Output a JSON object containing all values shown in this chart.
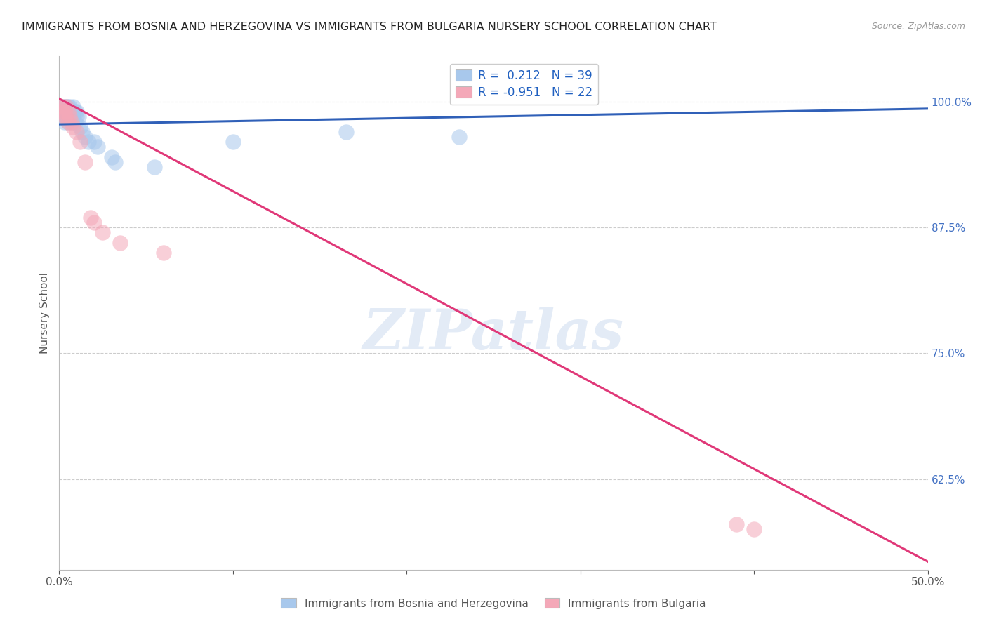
{
  "title": "IMMIGRANTS FROM BOSNIA AND HERZEGOVINA VS IMMIGRANTS FROM BULGARIA NURSERY SCHOOL CORRELATION CHART",
  "source": "Source: ZipAtlas.com",
  "ylabel": "Nursery School",
  "ytick_labels": [
    "100.0%",
    "87.5%",
    "75.0%",
    "62.5%"
  ],
  "ytick_values": [
    1.0,
    0.875,
    0.75,
    0.625
  ],
  "xlim": [
    0.0,
    0.5
  ],
  "ylim": [
    0.535,
    1.045
  ],
  "legend_bosnia_r": "R =  0.212",
  "legend_bosnia_n": "N = 39",
  "legend_bulgaria_r": "R = -0.951",
  "legend_bulgaria_n": "N = 22",
  "watermark": "ZIPatlas",
  "color_bosnia": "#A8C8EC",
  "color_bulgaria": "#F4A8B8",
  "color_trend_bosnia": "#3060B8",
  "color_trend_bulgaria": "#E03878",
  "bosnia_scatter_x": [
    0.001,
    0.001,
    0.002,
    0.002,
    0.002,
    0.003,
    0.003,
    0.003,
    0.003,
    0.004,
    0.004,
    0.004,
    0.005,
    0.005,
    0.005,
    0.006,
    0.006,
    0.006,
    0.007,
    0.007,
    0.008,
    0.008,
    0.009,
    0.009,
    0.01,
    0.01,
    0.011,
    0.012,
    0.013,
    0.015,
    0.017,
    0.02,
    0.022,
    0.03,
    0.032,
    0.055,
    0.1,
    0.165,
    0.23
  ],
  "bosnia_scatter_y": [
    0.99,
    0.995,
    0.985,
    0.99,
    0.995,
    0.98,
    0.985,
    0.99,
    0.995,
    0.985,
    0.99,
    0.995,
    0.98,
    0.985,
    0.995,
    0.985,
    0.99,
    0.995,
    0.98,
    0.99,
    0.985,
    0.995,
    0.98,
    0.99,
    0.985,
    0.99,
    0.985,
    0.975,
    0.97,
    0.965,
    0.96,
    0.96,
    0.955,
    0.945,
    0.94,
    0.935,
    0.96,
    0.97,
    0.965
  ],
  "bulgaria_scatter_x": [
    0.001,
    0.002,
    0.002,
    0.003,
    0.003,
    0.004,
    0.004,
    0.005,
    0.005,
    0.006,
    0.007,
    0.008,
    0.01,
    0.012,
    0.015,
    0.018,
    0.02,
    0.025,
    0.035,
    0.06,
    0.39,
    0.4
  ],
  "bulgaria_scatter_y": [
    0.995,
    0.99,
    0.995,
    0.985,
    0.99,
    0.985,
    0.995,
    0.98,
    0.99,
    0.985,
    0.98,
    0.975,
    0.97,
    0.96,
    0.94,
    0.885,
    0.88,
    0.87,
    0.86,
    0.85,
    0.58,
    0.575
  ],
  "bosnia_trend_x": [
    0.0,
    0.5
  ],
  "bosnia_trend_y": [
    0.9775,
    0.993
  ],
  "bulgaria_trend_x": [
    0.0,
    0.5
  ],
  "bulgaria_trend_y": [
    1.003,
    0.543
  ]
}
